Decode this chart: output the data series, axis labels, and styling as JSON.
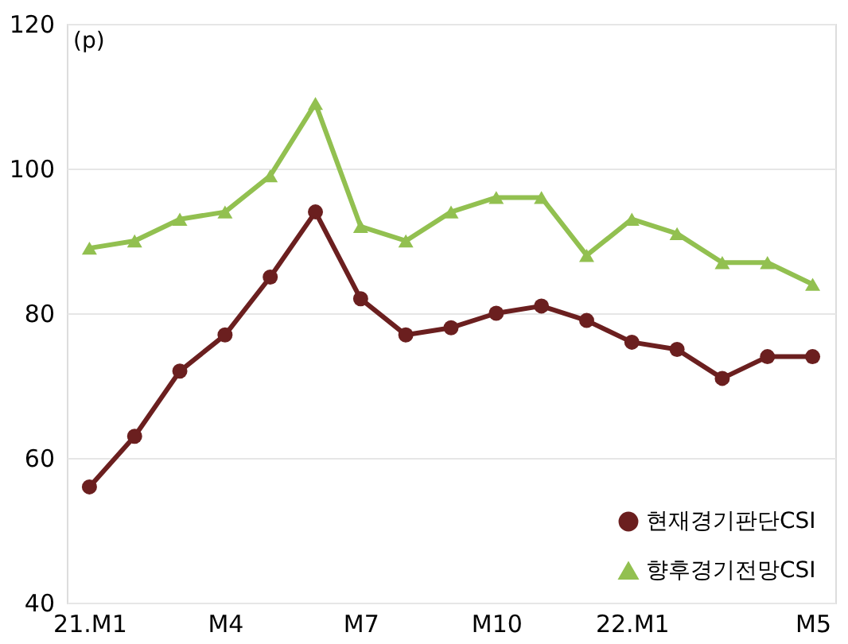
{
  "chart_data": {
    "type": "line",
    "categories": [
      "21.M1",
      null,
      null,
      "M4",
      null,
      null,
      "M7",
      null,
      null,
      "M10",
      null,
      null,
      "22.M1",
      null,
      null,
      null,
      "M5"
    ],
    "series": [
      {
        "name": "현재경기판단CSI",
        "color": "#6b1f1f",
        "marker": "circle",
        "values": [
          56,
          63,
          72,
          77,
          85,
          94,
          82,
          77,
          78,
          80,
          81,
          79,
          76,
          75,
          71,
          74,
          74
        ]
      },
      {
        "name": "향후경기전망CSI",
        "color": "#92c050",
        "marker": "triangle",
        "values": [
          89,
          90,
          93,
          94,
          99,
          109,
          92,
          90,
          94,
          96,
          96,
          88,
          93,
          91,
          87,
          87,
          84
        ]
      }
    ],
    "ylim": [
      40,
      120
    ],
    "yticks": [
      40,
      60,
      80,
      100,
      120
    ],
    "annotations": [
      "(p)"
    ],
    "grid": "y",
    "legend": "bottom right",
    "line_style": "solid"
  }
}
